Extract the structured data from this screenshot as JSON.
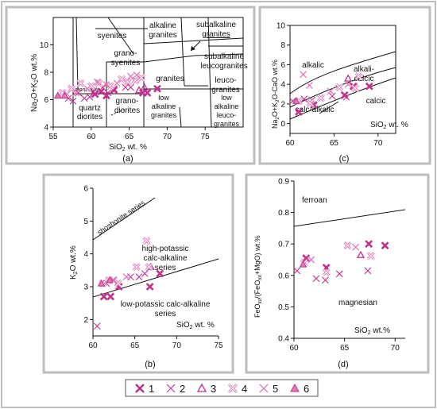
{
  "colors": {
    "magenta": "#c0328c",
    "pink": "#e07ab7",
    "frame": "#bdbdbd",
    "line": "#111111"
  },
  "panels": {
    "a_caption": "(a)",
    "b_caption": "(b)",
    "c_caption": "(c)",
    "d_caption": "(d)"
  },
  "chart_data": [
    {
      "id": "a",
      "type": "scatter",
      "title": "",
      "xlabel": "SiO2 wt. %",
      "ylabel": "Na2O+K2O wt.%",
      "xlim": [
        55,
        80
      ],
      "ylim": [
        4,
        12
      ],
      "xticks": [
        "55",
        "60",
        "65",
        "70",
        "75"
      ],
      "yticks": [
        "4",
        "6",
        "8",
        "10"
      ],
      "field_labels": [
        "syenites",
        "alkaline granites",
        "subalkaline granites",
        "grano-syenites",
        "subalkaline leucogranites",
        "monzonite",
        "quartz diorites",
        "grano-diorites",
        "granites",
        "leuco-granites",
        "low alkaline granites",
        "low alkaline leuco-granites"
      ],
      "series": [
        {
          "symbol": "1",
          "points": [
            [
              60.5,
              6.4
            ],
            [
              61.3,
              6.6
            ],
            [
              62.0,
              6.3
            ],
            [
              63.0,
              6.7
            ],
            [
              66.8,
              6.5
            ],
            [
              67.4,
              6.5
            ],
            [
              68.7,
              6.8
            ]
          ]
        },
        {
          "symbol": "2",
          "points": [
            [
              57.0,
              6.1
            ],
            [
              57.6,
              5.9
            ],
            [
              58.3,
              6.5
            ],
            [
              59.1,
              6.1
            ],
            [
              59.8,
              6.2
            ],
            [
              60.3,
              6.6
            ],
            [
              61.5,
              6.9
            ],
            [
              62.2,
              6.5
            ],
            [
              63.0,
              6.8
            ],
            [
              64.5,
              6.9
            ],
            [
              65.2,
              6.9
            ]
          ]
        },
        {
          "symbol": "3",
          "points": [
            [
              66.3,
              6.7
            ],
            [
              67.0,
              6.9
            ]
          ]
        },
        {
          "symbol": "4",
          "points": [
            [
              56.2,
              6.5
            ],
            [
              57.4,
              6.8
            ],
            [
              58.6,
              7.2
            ],
            [
              60.0,
              7.0
            ],
            [
              61.0,
              7.2
            ],
            [
              62.5,
              7.0
            ],
            [
              64.0,
              7.5
            ],
            [
              64.8,
              7.3
            ],
            [
              65.8,
              7.4
            ],
            [
              66.6,
              7.6
            ]
          ]
        },
        {
          "symbol": "5",
          "points": [
            [
              56.8,
              6.4
            ],
            [
              58.0,
              6.5
            ],
            [
              59.5,
              6.8
            ],
            [
              60.8,
              7.3
            ],
            [
              62.0,
              7.1
            ],
            [
              63.4,
              7.2
            ],
            [
              65.2,
              7.7
            ],
            [
              66.0,
              7.8
            ]
          ]
        },
        {
          "symbol": "6",
          "points": [
            [
              55.6,
              6.3
            ],
            [
              56.5,
              6.3
            ]
          ]
        }
      ]
    },
    {
      "id": "b",
      "type": "scatter",
      "title": "",
      "xlabel": "SiO2 wt. %",
      "ylabel": "K2O wt.%",
      "xlim": [
        60,
        75
      ],
      "ylim": [
        1.5,
        6
      ],
      "xticks": [
        "60",
        "65",
        "70",
        "75"
      ],
      "yticks": [
        "2",
        "3",
        "4",
        "5",
        "6"
      ],
      "field_labels": [
        "shoshonite series",
        "high-potassic calc-alkaline series",
        "low-potassic calc-alkaline series"
      ],
      "series": [
        {
          "symbol": "1",
          "points": [
            [
              61.3,
              2.7
            ],
            [
              62.1,
              2.7
            ],
            [
              63.1,
              3.0
            ],
            [
              66.8,
              3.0
            ],
            [
              68.0,
              3.4
            ]
          ]
        },
        {
          "symbol": "2",
          "points": [
            [
              60.5,
              1.8
            ],
            [
              61.6,
              3.1
            ],
            [
              62.4,
              3.2
            ],
            [
              64.5,
              3.3
            ],
            [
              65.5,
              3.3
            ],
            [
              66.2,
              3.4
            ]
          ]
        },
        {
          "symbol": "3",
          "points": [
            [
              66.9,
              3.6
            ]
          ]
        },
        {
          "symbol": "4",
          "points": [
            [
              61.2,
              3.1
            ],
            [
              61.9,
              3.2
            ],
            [
              63.0,
              3.1
            ],
            [
              65.2,
              3.6
            ],
            [
              66.4,
              4.4
            ],
            [
              66.7,
              3.6
            ]
          ]
        },
        {
          "symbol": "5",
          "points": [
            [
              62.5,
              3.2
            ],
            [
              64.0,
              3.3
            ]
          ]
        },
        {
          "symbol": "6",
          "points": [
            [
              61.0,
              3.1
            ],
            [
              62.0,
              3.2
            ]
          ]
        }
      ]
    },
    {
      "id": "c",
      "type": "scatter",
      "title": "",
      "xlabel": "SiO2 wt. %",
      "ylabel": "Na2O+K2O-CaO wt.%",
      "xlim": [
        60,
        72
      ],
      "ylim": [
        -1,
        10
      ],
      "xticks": [
        "60",
        "65",
        "70"
      ],
      "yticks": [
        "0",
        "2",
        "4",
        "6",
        "8",
        "10"
      ],
      "field_labels": [
        "alkalic",
        "alkali-calcic",
        "calc-alkalic",
        "calcic"
      ],
      "series": [
        {
          "symbol": "1",
          "points": [
            [
              61.0,
              1.2
            ],
            [
              62.7,
              1.9
            ],
            [
              66.2,
              2.9
            ],
            [
              67.2,
              3.8
            ],
            [
              69.0,
              3.8
            ]
          ]
        },
        {
          "symbol": "2",
          "points": [
            [
              60.3,
              2.3
            ],
            [
              61.6,
              2.5
            ],
            [
              62.5,
              2.4
            ],
            [
              64.8,
              2.8
            ],
            [
              66.4,
              2.7
            ]
          ]
        },
        {
          "symbol": "3",
          "points": [
            [
              66.6,
              4.6
            ]
          ]
        },
        {
          "symbol": "4",
          "points": [
            [
              61.0,
              2.3
            ],
            [
              62.3,
              2.1
            ],
            [
              63.5,
              2.6
            ],
            [
              65.6,
              3.7
            ],
            [
              67.4,
              3.6
            ],
            [
              67.8,
              4.8
            ]
          ]
        },
        {
          "symbol": "5",
          "points": [
            [
              61.5,
              5.0
            ],
            [
              62.2,
              3.9
            ],
            [
              64.6,
              3.3
            ],
            [
              66.6,
              4.0
            ]
          ]
        },
        {
          "symbol": "6",
          "points": [
            [
              60.7,
              2.3
            ]
          ]
        }
      ]
    },
    {
      "id": "d",
      "type": "scatter",
      "title": "",
      "xlabel": "SiO2 wt.%",
      "ylabel": "FeOtot/(FeOtot+MgO) wt.%",
      "xlim": [
        60,
        71
      ],
      "ylim": [
        0.4,
        0.9
      ],
      "xticks": [
        "60",
        "65",
        "70"
      ],
      "yticks": [
        "0.4",
        "0.5",
        "0.6",
        "0.7",
        "0.8",
        "0.9"
      ],
      "field_labels": [
        "ferroan",
        "magnesian"
      ],
      "series": [
        {
          "symbol": "1",
          "points": [
            [
              61.2,
              0.655
            ],
            [
              63.2,
              0.625
            ],
            [
              67.4,
              0.7
            ],
            [
              69.0,
              0.695
            ]
          ]
        },
        {
          "symbol": "2",
          "points": [
            [
              60.3,
              0.615
            ],
            [
              62.2,
              0.59
            ],
            [
              63.1,
              0.585
            ],
            [
              64.5,
              0.605
            ],
            [
              67.3,
              0.615
            ]
          ]
        },
        {
          "symbol": "3",
          "points": [
            [
              66.6,
              0.665
            ]
          ]
        },
        {
          "symbol": "4",
          "points": [
            [
              61.0,
              0.64
            ],
            [
              63.2,
              0.61
            ],
            [
              65.3,
              0.695
            ],
            [
              67.6,
              0.662
            ]
          ]
        },
        {
          "symbol": "5",
          "points": [
            [
              61.7,
              0.65
            ],
            [
              66.1,
              0.69
            ]
          ]
        },
        {
          "symbol": "6",
          "points": [
            [
              60.9,
              0.635
            ]
          ]
        }
      ]
    }
  ],
  "legend": [
    {
      "label": "1",
      "symbol": "1"
    },
    {
      "label": "2",
      "symbol": "2"
    },
    {
      "label": "3",
      "symbol": "3"
    },
    {
      "label": "4",
      "symbol": "4"
    },
    {
      "label": "5",
      "symbol": "5"
    },
    {
      "label": "6",
      "symbol": "6"
    }
  ]
}
